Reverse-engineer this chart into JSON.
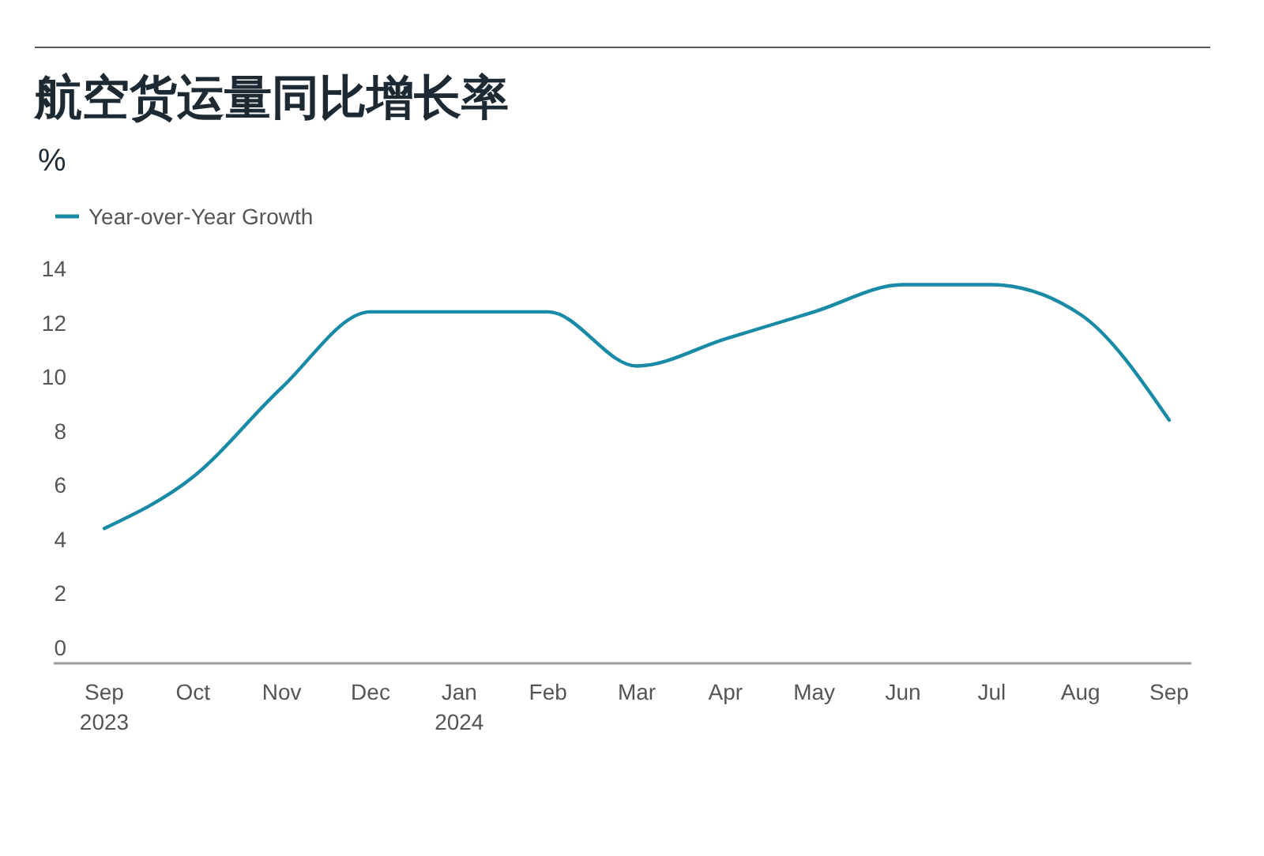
{
  "chart_data": {
    "type": "line",
    "title": "航空货运量同比增长率",
    "ylabel": "%",
    "categories": [
      "Sep\n2023",
      "Oct",
      "Nov",
      "Dec",
      "Jan\n2024",
      "Feb",
      "Mar",
      "Apr",
      "May",
      "Jun",
      "Jul",
      "Aug",
      "Sep"
    ],
    "series": [
      {
        "name": "Year-over-Year Growth",
        "color": "#1a8ba6",
        "values": [
          4.4,
          6.3,
          9.6,
          12.4,
          12.4,
          12.4,
          10.4,
          11.4,
          12.4,
          13.4,
          13.4,
          12.3,
          8.4
        ]
      }
    ],
    "ylim": [
      0,
      14
    ],
    "yticks": [
      0,
      2,
      4,
      6,
      8,
      10,
      12,
      14
    ],
    "grid": false,
    "legend": "top left",
    "marker": "none",
    "line_style": "solid"
  }
}
